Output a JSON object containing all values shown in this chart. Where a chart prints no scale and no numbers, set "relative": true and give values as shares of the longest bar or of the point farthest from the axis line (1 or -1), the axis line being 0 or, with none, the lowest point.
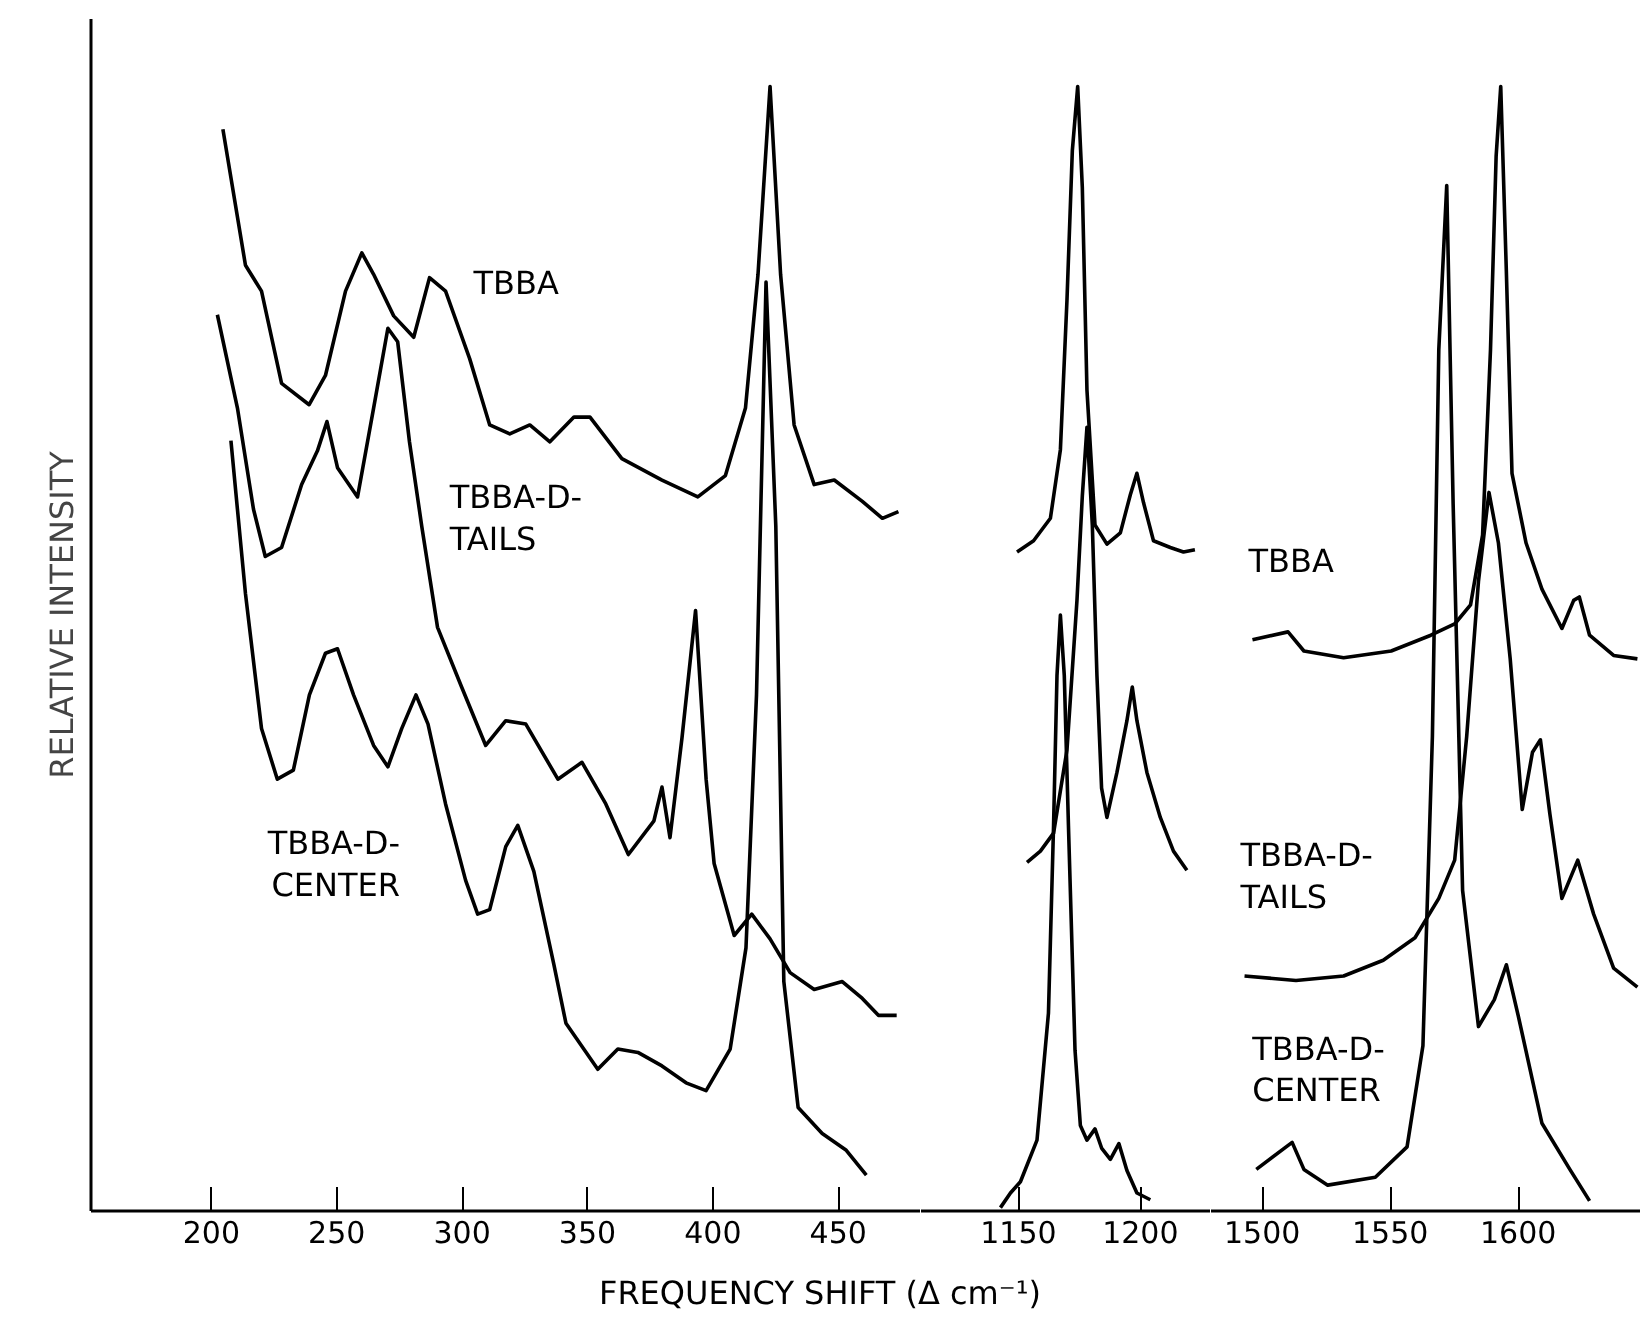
{
  "chart_data": [
    {
      "type": "line",
      "relative": true,
      "ylabel": "RELATIVE INTENSITY",
      "xlim": [
        152,
        483
      ],
      "xticks": [
        200,
        250,
        300,
        350,
        400,
        450
      ],
      "grid": false,
      "line_style": "solid",
      "marker": "none",
      "series": [
        {
          "name": "TBBA",
          "color": "#000000",
          "x": [
            204.6,
            213.6,
            220,
            228,
            239,
            245.5,
            253.5,
            260,
            264.7,
            272.7,
            280.7,
            287,
            293.4,
            303,
            311,
            319,
            327,
            335,
            344.6,
            351,
            363.7,
            379.7,
            394,
            405,
            413,
            418,
            422.8,
            427,
            432.4,
            440.4,
            448.4,
            459.6,
            467.6,
            474
          ],
          "values": [
            0.962,
            0.841,
            0.818,
            0.736,
            0.717,
            0.743,
            0.818,
            0.852,
            0.833,
            0.796,
            0.777,
            0.83,
            0.818,
            0.758,
            0.699,
            0.691,
            0.699,
            0.684,
            0.706,
            0.706,
            0.669,
            0.65,
            0.635,
            0.654,
            0.714,
            0.833,
            1.0,
            0.833,
            0.699,
            0.646,
            0.65,
            0.631,
            0.616,
            0.622
          ]
        },
        {
          "name": "TBBA-D-TAILS",
          "color": "#000000",
          "x": [
            202.4,
            210.4,
            216.8,
            221.5,
            228,
            236,
            242.3,
            246.1,
            250.3,
            258.3,
            264.7,
            270.4,
            274.3,
            279,
            283.9,
            290.2,
            299.8,
            309.4,
            317.4,
            325.4,
            338.2,
            347.8,
            357.3,
            366.3,
            376.5,
            379.7,
            382.9,
            387.7,
            393.1,
            397.3,
            400.5,
            408.5,
            415.5,
            422.8,
            430.8,
            440.4,
            451.6,
            459.6,
            466,
            473.3
          ],
          "values": [
            0.797,
            0.714,
            0.624,
            0.582,
            0.59,
            0.646,
            0.676,
            0.702,
            0.661,
            0.635,
            0.714,
            0.785,
            0.773,
            0.684,
            0.609,
            0.519,
            0.466,
            0.414,
            0.436,
            0.433,
            0.384,
            0.399,
            0.362,
            0.317,
            0.347,
            0.377,
            0.332,
            0.421,
            0.534,
            0.384,
            0.309,
            0.245,
            0.264,
            0.242,
            0.212,
            0.197,
            0.204,
            0.189,
            0.174,
            0.174
          ]
        },
        {
          "name": "TBBA-D-CENTER",
          "color": "#000000",
          "x": [
            207.8,
            213.6,
            220,
            226.3,
            232.7,
            239.1,
            245.5,
            250.3,
            256.7,
            264.7,
            270.4,
            275.9,
            281.6,
            286.4,
            293.4,
            301.4,
            306.2,
            311,
            317.4,
            322.2,
            328.6,
            336.6,
            341.4,
            354.1,
            362.1,
            370.1,
            379.7,
            389.3,
            397.3,
            406.9,
            413.2,
            417.4,
            421.2,
            425.1,
            428.3,
            434,
            443.6,
            453.2,
            461.2
          ],
          "values": [
            0.685,
            0.549,
            0.429,
            0.384,
            0.392,
            0.459,
            0.496,
            0.5,
            0.459,
            0.414,
            0.395,
            0.429,
            0.459,
            0.433,
            0.362,
            0.294,
            0.264,
            0.268,
            0.324,
            0.343,
            0.302,
            0.219,
            0.167,
            0.126,
            0.144,
            0.141,
            0.129,
            0.114,
            0.107,
            0.144,
            0.234,
            0.459,
            0.826,
            0.609,
            0.204,
            0.092,
            0.069,
            0.054,
            0.032
          ]
        }
      ]
    },
    {
      "type": "line",
      "relative": true,
      "xlabel": "FREQUENCY SHIFT (Δ cm⁻¹)",
      "xlim": [
        1110,
        1229
      ],
      "xticks": [
        1150,
        1200
      ],
      "grid": false,
      "line_style": "solid",
      "marker": "none",
      "series": [
        {
          "color": "#000000",
          "x": [
            1149.4,
            1156.2,
            1163.1,
            1167.2,
            1169.9,
            1172.1,
            1174.3,
            1176.2,
            1178.1,
            1181.4,
            1186.3,
            1191.8,
            1195.9,
            1198.6,
            1201.3,
            1205.4,
            1212.3,
            1217.7,
            1222.4
          ],
          "values": [
            0.586,
            0.596,
            0.616,
            0.677,
            0.81,
            0.943,
            1.0,
            0.91,
            0.73,
            0.61,
            0.593,
            0.603,
            0.637,
            0.656,
            0.63,
            0.596,
            0.59,
            0.586,
            0.588
          ]
        },
        {
          "color": "#000000",
          "x": [
            1153.5,
            1159,
            1164.4,
            1169.9,
            1174,
            1176.2,
            1178.1,
            1180.3,
            1182.2,
            1184.1,
            1186.3,
            1190.4,
            1194.5,
            1196.7,
            1198.6,
            1202.7,
            1208.2,
            1213.6,
            1219.1
          ],
          "values": [
            0.31,
            0.32,
            0.336,
            0.41,
            0.543,
            0.636,
            0.697,
            0.61,
            0.476,
            0.376,
            0.35,
            0.39,
            0.436,
            0.466,
            0.436,
            0.39,
            0.35,
            0.32,
            0.303
          ]
        },
        {
          "color": "#000000",
          "x": [
            1142.6,
            1146.7,
            1150.8,
            1157.6,
            1162.3,
            1164.4,
            1165.8,
            1167.2,
            1168.8,
            1170.5,
            1173.2,
            1175.4,
            1178.1,
            1181.4,
            1184.1,
            1187.7,
            1191.2,
            1194.5,
            1198.6,
            1204.1
          ],
          "values": [
            0.003,
            0.016,
            0.026,
            0.063,
            0.176,
            0.343,
            0.476,
            0.53,
            0.476,
            0.343,
            0.143,
            0.076,
            0.063,
            0.073,
            0.056,
            0.046,
            0.06,
            0.036,
            0.016,
            0.01
          ]
        }
      ]
    },
    {
      "type": "line",
      "relative": true,
      "xlim": [
        1480,
        1648
      ],
      "xticks": [
        1500,
        1550,
        1600
      ],
      "grid": false,
      "line_style": "solid",
      "marker": "none",
      "series": [
        {
          "name": "TBBA",
          "color": "#000000",
          "x": [
            1496.2,
            1510.1,
            1516.3,
            1531.8,
            1550.4,
            1565.9,
            1575.2,
            1581.4,
            1586.1,
            1589.2,
            1591.4,
            1593.2,
            1595.4,
            1597.6,
            1603.1,
            1609.3,
            1617.1,
            1621.7,
            1623.9,
            1627.9,
            1637.3,
            1646.6
          ],
          "values": [
            0.508,
            0.515,
            0.498,
            0.492,
            0.498,
            0.512,
            0.522,
            0.539,
            0.601,
            0.766,
            0.938,
            1.0,
            0.835,
            0.656,
            0.594,
            0.553,
            0.518,
            0.543,
            0.546,
            0.512,
            0.494,
            0.491
          ]
        },
        {
          "name": "TBBA-D-TAILS",
          "color": "#000000",
          "x": [
            1493.1,
            1513.2,
            1531.8,
            1547.3,
            1559.7,
            1569,
            1575.2,
            1579.9,
            1584.5,
            1588.6,
            1592.3,
            1596.9,
            1601.6,
            1605.6,
            1608.7,
            1612.4,
            1617.1,
            1623.3,
            1629.5,
            1637.3,
            1646.6
          ],
          "values": [
            0.209,
            0.205,
            0.209,
            0.223,
            0.243,
            0.278,
            0.312,
            0.422,
            0.56,
            0.639,
            0.594,
            0.491,
            0.357,
            0.408,
            0.419,
            0.353,
            0.278,
            0.312,
            0.264,
            0.216,
            0.199
          ]
        },
        {
          "name": "TBBA-D-CENTER",
          "color": "#000000",
          "x": [
            1497.7,
            1511.7,
            1516.3,
            1525.6,
            1544.2,
            1556.6,
            1562.8,
            1566.5,
            1569,
            1572.1,
            1574.6,
            1578.3,
            1584.5,
            1590.7,
            1595.4,
            1600,
            1609.3,
            1620.2,
            1627.9
          ],
          "values": [
            0.037,
            0.061,
            0.037,
            0.023,
            0.03,
            0.057,
            0.147,
            0.422,
            0.766,
            0.912,
            0.629,
            0.285,
            0.164,
            0.188,
            0.219,
            0.174,
            0.078,
            0.037,
            0.009
          ]
        }
      ]
    }
  ]
}
